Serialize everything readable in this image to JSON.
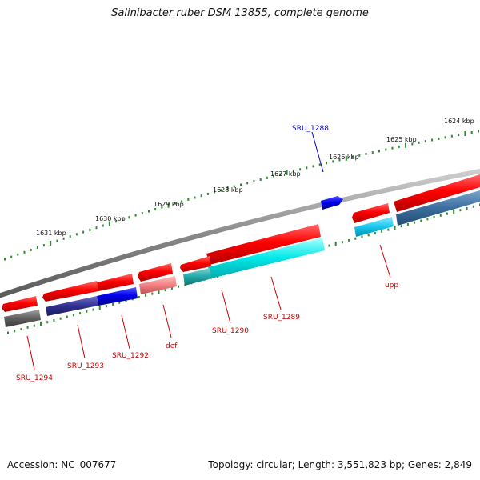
{
  "title": "Salinibacter ruber DSM 13855, complete genome",
  "footer": {
    "accession": "Accession: NC_007677",
    "summary": "Topology: circular; Length: 3,551,823 bp; Genes: 2,849"
  },
  "colors": {
    "backbone": "#8a8a8a",
    "tick": "#2e8b2e",
    "forward_gene": "#ff0000",
    "reverse_gene": "#0000ee",
    "label_forward": "#cc0000",
    "label_reverse": "#0000cc"
  },
  "scale": {
    "unit": "kbp",
    "labels": [
      "1624 kbp",
      "1625 kbp",
      "1626 kbp",
      "1627 kbp",
      "1628 kbp",
      "1629 kbp",
      "1630 kbp",
      "1631 kbp"
    ]
  },
  "genes": [
    {
      "name": "SRU_1288",
      "strand": "reverse"
    },
    {
      "name": "upp",
      "strand": "forward"
    },
    {
      "name": "SRU_1289",
      "strand": "forward"
    },
    {
      "name": "SRU_1290",
      "strand": "forward"
    },
    {
      "name": "def",
      "strand": "forward"
    },
    {
      "name": "SRU_1292",
      "strand": "forward"
    },
    {
      "name": "SRU_1293",
      "strand": "forward"
    },
    {
      "name": "SRU_1294",
      "strand": "forward"
    }
  ]
}
